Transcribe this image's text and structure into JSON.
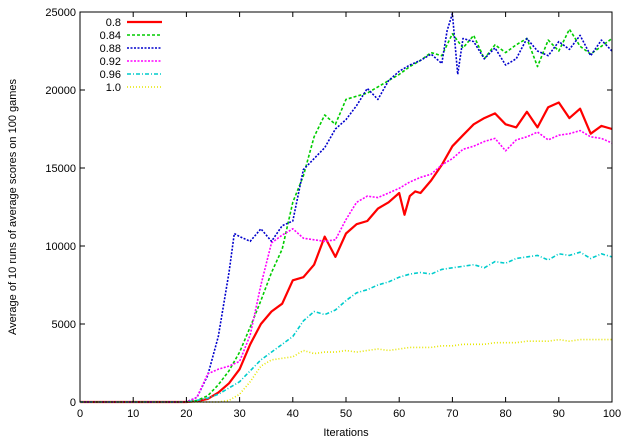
{
  "chart_data": {
    "type": "line",
    "title": "",
    "xlabel": "Iterations",
    "ylabel": "Average of 10 runs of average scores on 100 games",
    "xlim": [
      0,
      100
    ],
    "ylim": [
      0,
      25000
    ],
    "xticks": [
      0,
      10,
      20,
      30,
      40,
      50,
      60,
      70,
      80,
      90,
      100
    ],
    "yticks": [
      0,
      5000,
      10000,
      15000,
      20000,
      25000
    ],
    "grid": false,
    "legend_position": "top-left",
    "series": [
      {
        "name": "0.8",
        "color": "#ff0000",
        "dash": "",
        "width": 2.2,
        "x": [
          0,
          5,
          10,
          15,
          20,
          22,
          24,
          26,
          28,
          30,
          32,
          34,
          36,
          38,
          40,
          42,
          44,
          46,
          48,
          50,
          52,
          54,
          56,
          58,
          60,
          61,
          62,
          63,
          64,
          66,
          68,
          70,
          72,
          74,
          76,
          78,
          80,
          82,
          84,
          86,
          88,
          90,
          92,
          94,
          96,
          98,
          100
        ],
        "y": [
          0,
          0,
          0,
          0,
          0,
          50,
          200,
          600,
          1200,
          2100,
          3700,
          5000,
          5800,
          6300,
          7800,
          8000,
          8800,
          10600,
          9300,
          10800,
          11400,
          11600,
          12400,
          12800,
          13400,
          12000,
          13200,
          13500,
          13400,
          14200,
          15200,
          16400,
          17100,
          17800,
          18200,
          18500,
          17800,
          17600,
          18600,
          17600,
          18900,
          19200,
          18200,
          18800,
          17200,
          17700,
          17500
        ]
      },
      {
        "name": "0.84",
        "color": "#00cc00",
        "dash": "3,2",
        "width": 1.6,
        "x": [
          0,
          5,
          10,
          15,
          20,
          22,
          24,
          26,
          28,
          30,
          32,
          34,
          36,
          38,
          40,
          42,
          44,
          46,
          48,
          50,
          52,
          54,
          56,
          58,
          60,
          62,
          64,
          66,
          68,
          70,
          72,
          74,
          76,
          78,
          80,
          82,
          84,
          86,
          88,
          90,
          92,
          94,
          96,
          98,
          100
        ],
        "y": [
          0,
          0,
          0,
          0,
          0,
          100,
          400,
          1100,
          2000,
          3200,
          4800,
          6500,
          8300,
          9800,
          12800,
          14500,
          17000,
          18400,
          17800,
          19400,
          19600,
          19800,
          20200,
          20600,
          21000,
          21500,
          21900,
          22400,
          22200,
          23600,
          22700,
          23500,
          22000,
          22900,
          22400,
          22900,
          23300,
          21500,
          23200,
          22500,
          23900,
          22800,
          22300,
          22800,
          23300
        ]
      },
      {
        "name": "0.88",
        "color": "#0000cc",
        "dash": "2,1.5",
        "width": 1.6,
        "x": [
          0,
          5,
          10,
          15,
          20,
          22,
          24,
          26,
          28,
          29,
          30,
          32,
          34,
          36,
          38,
          40,
          42,
          44,
          46,
          48,
          50,
          52,
          54,
          56,
          58,
          60,
          62,
          64,
          66,
          68,
          69,
          70,
          71,
          72,
          74,
          76,
          78,
          80,
          82,
          84,
          86,
          88,
          90,
          92,
          94,
          96,
          98,
          100
        ],
        "y": [
          0,
          0,
          0,
          0,
          0,
          300,
          1700,
          4200,
          8300,
          10800,
          10600,
          10300,
          11100,
          10300,
          11300,
          11600,
          14900,
          15600,
          16300,
          17500,
          18100,
          19000,
          20100,
          19400,
          20600,
          21200,
          21600,
          21900,
          22300,
          21700,
          23800,
          24900,
          21000,
          23300,
          23100,
          22000,
          22700,
          21600,
          22000,
          23300,
          22500,
          22200,
          23100,
          22600,
          23500,
          22200,
          23200,
          22500
        ]
      },
      {
        "name": "0.92",
        "color": "#ff00ff",
        "dash": "2,1.5",
        "width": 1.6,
        "x": [
          0,
          5,
          10,
          15,
          20,
          22,
          24,
          26,
          28,
          30,
          32,
          34,
          36,
          38,
          40,
          42,
          44,
          46,
          48,
          50,
          52,
          54,
          56,
          58,
          60,
          62,
          64,
          66,
          68,
          70,
          72,
          74,
          76,
          78,
          80,
          82,
          84,
          86,
          88,
          90,
          92,
          94,
          96,
          98,
          100
        ],
        "y": [
          0,
          0,
          0,
          0,
          0,
          300,
          1800,
          2100,
          2300,
          2600,
          4300,
          7500,
          10200,
          10700,
          11100,
          10500,
          10400,
          10300,
          10400,
          11700,
          12800,
          13200,
          13100,
          13400,
          13700,
          14100,
          14400,
          14600,
          15200,
          15600,
          16200,
          16400,
          16700,
          16900,
          16100,
          16800,
          17000,
          17300,
          16800,
          17100,
          17200,
          17400,
          17000,
          16900,
          16600
        ]
      },
      {
        "name": "0.96",
        "color": "#00cccc",
        "dash": "4,2,1,2",
        "width": 1.6,
        "x": [
          0,
          5,
          10,
          15,
          20,
          22,
          24,
          26,
          28,
          30,
          32,
          34,
          36,
          38,
          40,
          42,
          44,
          46,
          48,
          50,
          52,
          54,
          56,
          58,
          60,
          62,
          64,
          66,
          68,
          70,
          72,
          74,
          76,
          78,
          80,
          82,
          84,
          86,
          88,
          90,
          92,
          94,
          96,
          98,
          100
        ],
        "y": [
          0,
          0,
          0,
          0,
          0,
          100,
          250,
          500,
          900,
          1300,
          2000,
          2700,
          3200,
          3700,
          4200,
          5200,
          5800,
          5600,
          5900,
          6500,
          7000,
          7200,
          7500,
          7700,
          8000,
          8200,
          8300,
          8200,
          8500,
          8600,
          8700,
          8800,
          8600,
          9000,
          8900,
          9200,
          9300,
          9400,
          9100,
          9500,
          9400,
          9600,
          9200,
          9500,
          9300
        ]
      },
      {
        "name": "1.0",
        "color": "#e6e600",
        "dash": "1,2",
        "width": 1.6,
        "x": [
          0,
          5,
          10,
          15,
          20,
          22,
          24,
          26,
          28,
          30,
          32,
          34,
          36,
          38,
          40,
          42,
          44,
          46,
          48,
          50,
          52,
          54,
          56,
          58,
          60,
          62,
          64,
          66,
          68,
          70,
          72,
          74,
          76,
          78,
          80,
          82,
          84,
          86,
          88,
          90,
          92,
          94,
          96,
          98,
          100
        ],
        "y": [
          0,
          0,
          0,
          0,
          0,
          0,
          0,
          0,
          100,
          500,
          1300,
          2300,
          2700,
          2800,
          2900,
          3300,
          3100,
          3200,
          3200,
          3300,
          3200,
          3300,
          3400,
          3300,
          3400,
          3500,
          3500,
          3500,
          3600,
          3600,
          3700,
          3700,
          3700,
          3800,
          3800,
          3800,
          3900,
          3900,
          3900,
          4000,
          3900,
          4000,
          4000,
          4000,
          4000
        ]
      }
    ]
  }
}
